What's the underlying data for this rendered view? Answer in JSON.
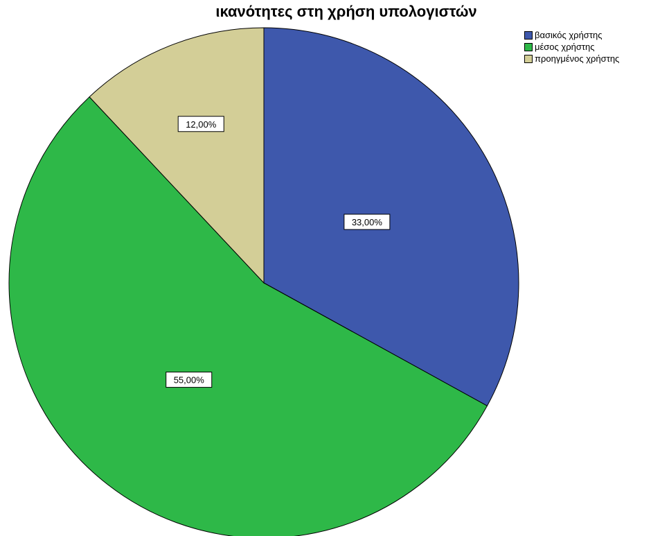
{
  "chart_data": {
    "type": "pie",
    "title": "ικανότητες στη χρήση υπολογιστών",
    "legend_position": "top-right",
    "slices": [
      {
        "label": "βασικός χρήστης",
        "value": 33.0,
        "display": "33,00%",
        "color": "#3E58AC"
      },
      {
        "label": "μέσος χρήστης",
        "value": 55.0,
        "display": "55,00%",
        "color": "#2EB848"
      },
      {
        "label": "προηγμένος χρήστης",
        "value": 12.0,
        "display": "12,00%",
        "color": "#D3CE97"
      }
    ]
  }
}
